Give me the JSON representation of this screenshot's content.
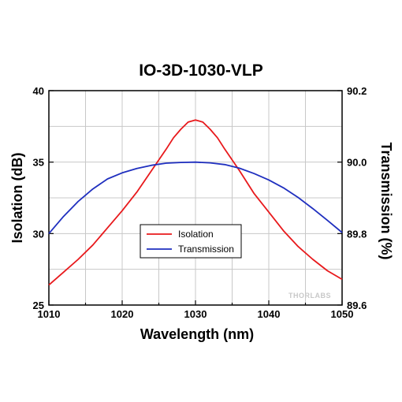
{
  "chart_data": {
    "type": "line",
    "title": "IO-3D-1030-VLP",
    "xlabel": "Wavelength (nm)",
    "ylabel_left": "Isolation (dB)",
    "ylabel_right": "Transmission (%)",
    "xlim": [
      1010,
      1050
    ],
    "ylim_left": [
      25,
      40
    ],
    "ylim_right": [
      89.6,
      90.2
    ],
    "x_ticks": [
      "1010",
      "1020",
      "1030",
      "1040",
      "1050"
    ],
    "y_left_ticks": [
      "25",
      "30",
      "35",
      "40"
    ],
    "y_right_ticks": [
      "89.6",
      "89.8",
      "90.0",
      "90.2"
    ],
    "grid": true,
    "legend_position": "center-left",
    "watermark": "THORLABS",
    "series": [
      {
        "name": "Isolation",
        "axis": "left",
        "color": "#e8191c",
        "x": [
          1010,
          1012,
          1014,
          1016,
          1018,
          1020,
          1022,
          1024,
          1026,
          1027,
          1028,
          1029,
          1030,
          1031,
          1032,
          1033,
          1034,
          1036,
          1038,
          1040,
          1042,
          1044,
          1046,
          1048,
          1050
        ],
        "y": [
          26.4,
          27.3,
          28.2,
          29.2,
          30.4,
          31.6,
          32.9,
          34.4,
          35.9,
          36.7,
          37.3,
          37.8,
          37.95,
          37.8,
          37.3,
          36.7,
          35.9,
          34.4,
          32.8,
          31.5,
          30.2,
          29.1,
          28.2,
          27.4,
          26.8
        ]
      },
      {
        "name": "Transmission",
        "axis": "right",
        "color": "#1f2fbf",
        "x": [
          1010,
          1012,
          1014,
          1016,
          1018,
          1020,
          1022,
          1024,
          1026,
          1028,
          1030,
          1032,
          1034,
          1036,
          1038,
          1040,
          1042,
          1044,
          1046,
          1048,
          1050
        ],
        "y": [
          89.8,
          89.848,
          89.89,
          89.925,
          89.953,
          89.97,
          89.982,
          89.991,
          89.997,
          89.999,
          90.0,
          89.998,
          89.993,
          89.983,
          89.968,
          89.95,
          89.928,
          89.901,
          89.87,
          89.837,
          89.803
        ]
      }
    ]
  }
}
